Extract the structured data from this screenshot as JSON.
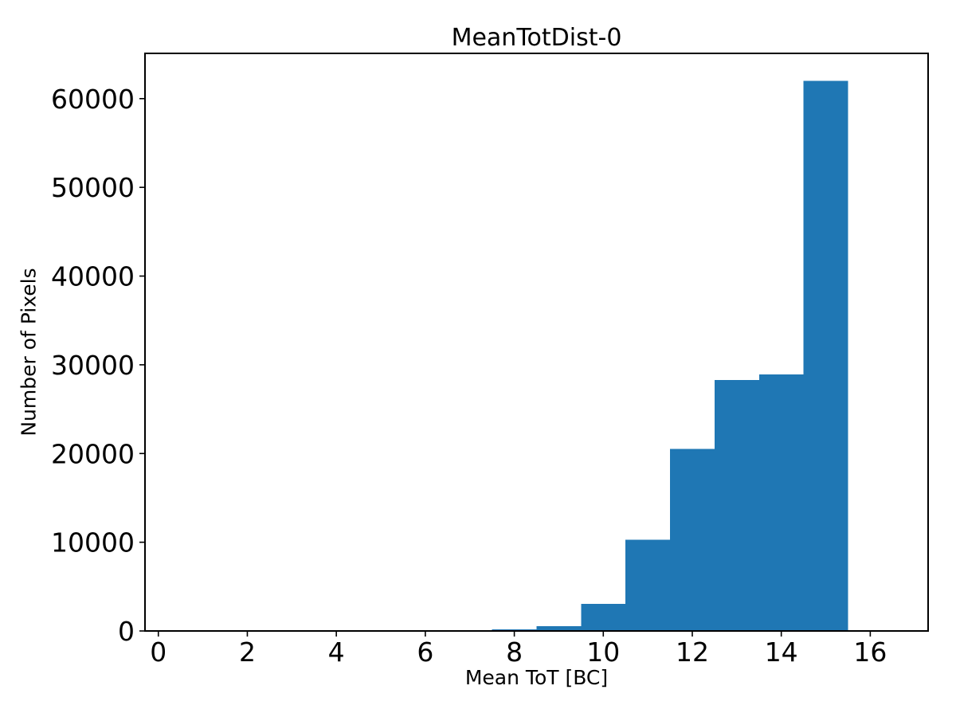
{
  "figure": {
    "title": "MeanTotDist-0",
    "xlabel": "Mean ToT [BC]",
    "ylabel": "Number of Pixels",
    "background_color": "#ffffff"
  },
  "chart_data": {
    "type": "bar",
    "subtype": "histogram",
    "title": "MeanTotDist-0",
    "xlabel": "Mean ToT [BC]",
    "ylabel": "Number of Pixels",
    "bin_edges": [
      0.5,
      1.5,
      2.5,
      3.5,
      4.5,
      5.5,
      6.5,
      7.5,
      8.5,
      9.5,
      10.5,
      11.5,
      12.5,
      13.5,
      14.5,
      15.5,
      16.5
    ],
    "counts": [
      0,
      0,
      0,
      0,
      0,
      0,
      0,
      200,
      550,
      3050,
      10300,
      20500,
      28300,
      28900,
      62000,
      0
    ],
    "bar_color": "#1f77b4",
    "axis_color": "#000000",
    "xlim": [
      -0.3,
      17.3
    ],
    "ylim": [
      0,
      65100
    ],
    "xticks": [
      0,
      2,
      4,
      6,
      8,
      10,
      12,
      14,
      16
    ],
    "yticks": [
      0,
      10000,
      20000,
      30000,
      40000,
      50000,
      60000
    ],
    "xtick_labels": [
      "0",
      "2",
      "4",
      "6",
      "8",
      "10",
      "12",
      "14",
      "16"
    ],
    "ytick_labels": [
      "0",
      "10000",
      "20000",
      "30000",
      "40000",
      "50000",
      "60000"
    ],
    "grid": false,
    "legend": null
  }
}
